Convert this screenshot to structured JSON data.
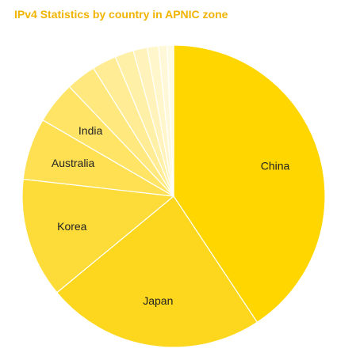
{
  "chart_data": {
    "type": "pie",
    "title": "IPv4 Statistics by country in APNIC zone",
    "slices": [
      {
        "label": "China",
        "value": 40.7,
        "color": "#ffd600"
      },
      {
        "label": "Japan",
        "value": 23.3,
        "color": "#fcd71e"
      },
      {
        "label": "Korea",
        "value": 12.8,
        "color": "#fddc3a"
      },
      {
        "label": "Australia",
        "value": 6.6,
        "color": "#fee052"
      },
      {
        "label": "India",
        "value": 4.5,
        "color": "#ffe466"
      },
      {
        "label": "",
        "value": 3.2,
        "color": "#ffe97e"
      },
      {
        "label": "",
        "value": 2.6,
        "color": "#ffec94"
      },
      {
        "label": "",
        "value": 2.0,
        "color": "#fff0a8"
      },
      {
        "label": "",
        "value": 1.5,
        "color": "#fff3bb"
      },
      {
        "label": "",
        "value": 1.2,
        "color": "#fff6cc"
      },
      {
        "label": "",
        "value": 0.9,
        "color": "#fff8d8"
      },
      {
        "label": "",
        "value": 0.7,
        "color": "#fffae2"
      }
    ]
  }
}
